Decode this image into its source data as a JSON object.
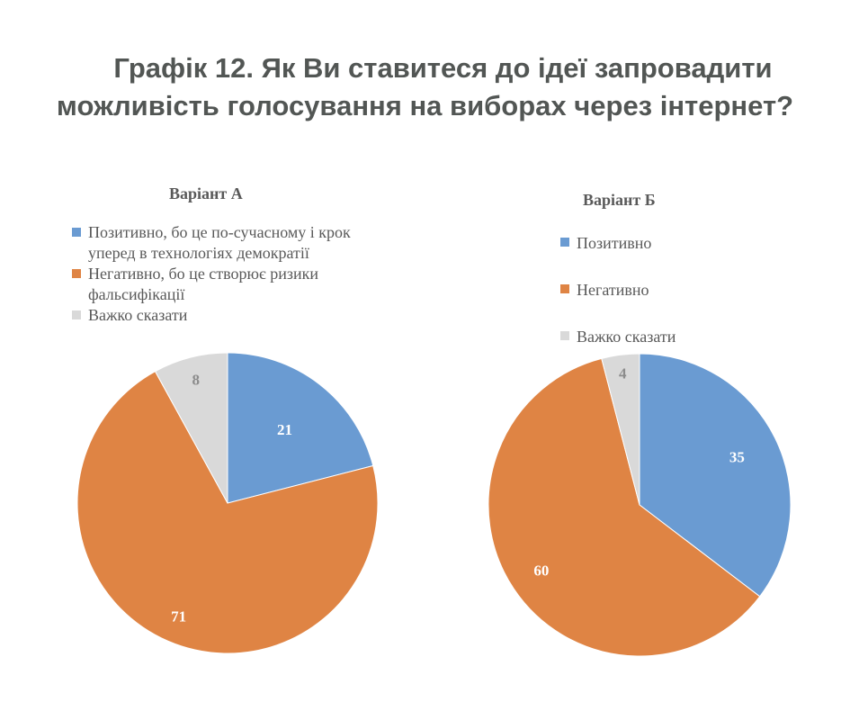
{
  "title_line1": "Графік 12. Як Ви ставитеся до ідеї запровадити",
  "title_line2": "можливість голосування на виборах через інтернет?",
  "colors": {
    "positive": "#6a9bd2",
    "negative": "#df8444",
    "hard": "#d9d9d9",
    "label_light": "#ffffff",
    "label_gray": "#8c8c8c"
  },
  "chart_data": [
    {
      "type": "pie",
      "title": "Варіант А",
      "legend": [
        "Позитивно, бо це по-сучасному і крок уперед в технологіях демократії",
        "Негативно, бо це створює ризики фальсифікації",
        "Важко сказати"
      ],
      "legend_lines": [
        [
          "Позитивно, бо це по-сучасному і крок",
          "уперед в технологіях демократії"
        ],
        [
          "Негативно, бо це створює ризики",
          "фальсифікації"
        ],
        [
          "Важко сказати"
        ]
      ],
      "values": [
        21,
        71,
        8
      ],
      "legend_placement": "top"
    },
    {
      "type": "pie",
      "title": "Варіант Б",
      "legend": [
        "Позитивно",
        "Негативно",
        "Важко сказати"
      ],
      "legend_lines": [
        [
          "Позитивно"
        ],
        [
          "Негативно"
        ],
        [
          "Важко сказати"
        ]
      ],
      "values": [
        35,
        60,
        4
      ],
      "legend_placement": "top"
    }
  ]
}
